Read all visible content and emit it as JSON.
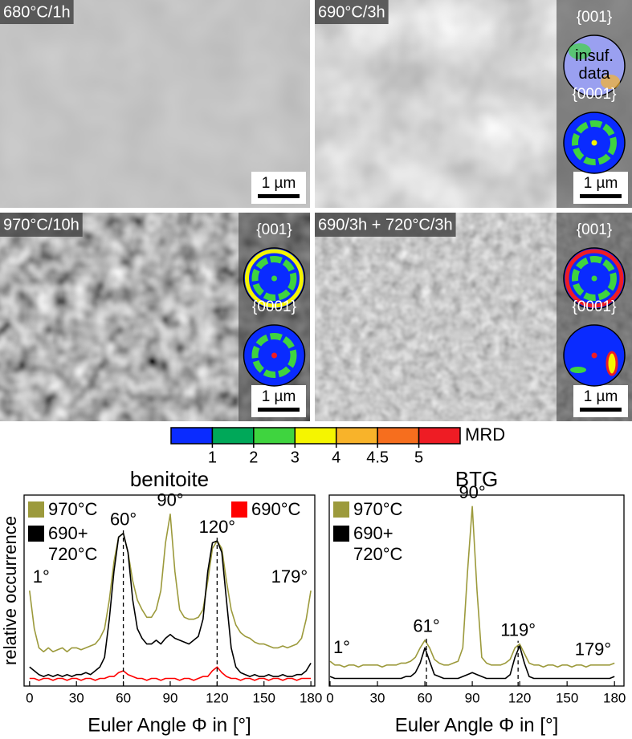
{
  "panels": [
    {
      "label": "680°C/1h",
      "scale_bar": "1 µm"
    },
    {
      "label": "690°C/3h",
      "scale_bar": "1 µm",
      "pole_figures": [
        {
          "label": "{001}",
          "note": "insuf. data"
        },
        {
          "label": "{0001}"
        }
      ]
    },
    {
      "label": "970°C/10h",
      "scale_bar": "1 µm",
      "pole_figures": [
        {
          "label": "{001}"
        },
        {
          "label": "{0001}"
        }
      ]
    },
    {
      "label": "690/3h + 720°C/3h",
      "scale_bar": "1 µm",
      "pole_figures": [
        {
          "label": "{001}"
        },
        {
          "label": "{0001}"
        }
      ]
    }
  ],
  "colorbar": {
    "label": "MRD",
    "ticks": [
      1,
      2,
      3,
      4,
      4.5,
      5
    ],
    "colors": [
      "#0a2bff",
      "#00a859",
      "#3fd43f",
      "#f5f500",
      "#f8b32a",
      "#f66e1e",
      "#ee1c24"
    ]
  },
  "chart_data": [
    {
      "type": "line",
      "title": "benitoite",
      "xlabel": "Euler Angle Φ in [°]",
      "ylabel": "relative occurrence",
      "xlim": [
        -3.5,
        182.5
      ],
      "xticks": [
        0,
        30,
        60,
        90,
        120,
        150,
        180
      ],
      "ylim": [
        0,
        1
      ],
      "legend": "upper left",
      "x": [
        0,
        3,
        6,
        9,
        12,
        15,
        18,
        21,
        24,
        27,
        30,
        33,
        36,
        39,
        42,
        45,
        48,
        51,
        54,
        57,
        60,
        63,
        66,
        69,
        72,
        75,
        78,
        81,
        84,
        87,
        90,
        93,
        96,
        99,
        102,
        105,
        108,
        111,
        114,
        117,
        120,
        123,
        126,
        129,
        132,
        135,
        138,
        141,
        144,
        147,
        150,
        153,
        156,
        159,
        162,
        165,
        168,
        171,
        174,
        177,
        180
      ],
      "series": [
        {
          "name": "970°C",
          "color": "#9c9a3c",
          "values": [
            0.5,
            0.3,
            0.2,
            0.18,
            0.2,
            0.18,
            0.19,
            0.2,
            0.18,
            0.2,
            0.2,
            0.19,
            0.2,
            0.21,
            0.22,
            0.25,
            0.3,
            0.45,
            0.65,
            0.78,
            0.8,
            0.7,
            0.55,
            0.45,
            0.4,
            0.36,
            0.36,
            0.4,
            0.5,
            0.75,
            0.9,
            0.6,
            0.4,
            0.36,
            0.35,
            0.35,
            0.36,
            0.4,
            0.55,
            0.72,
            0.76,
            0.72,
            0.55,
            0.4,
            0.32,
            0.28,
            0.26,
            0.25,
            0.23,
            0.22,
            0.22,
            0.21,
            0.2,
            0.2,
            0.21,
            0.2,
            0.21,
            0.22,
            0.25,
            0.35,
            0.5
          ]
        },
        {
          "name": "690+ 720°C",
          "color": "#000000",
          "values": [
            0.1,
            0.08,
            0.06,
            0.05,
            0.06,
            0.05,
            0.06,
            0.05,
            0.06,
            0.05,
            0.06,
            0.06,
            0.07,
            0.06,
            0.08,
            0.1,
            0.15,
            0.35,
            0.6,
            0.78,
            0.8,
            0.7,
            0.45,
            0.3,
            0.25,
            0.22,
            0.22,
            0.24,
            0.22,
            0.25,
            0.27,
            0.25,
            0.24,
            0.23,
            0.22,
            0.24,
            0.26,
            0.35,
            0.6,
            0.75,
            0.76,
            0.7,
            0.45,
            0.2,
            0.1,
            0.07,
            0.06,
            0.05,
            0.06,
            0.05,
            0.05,
            0.06,
            0.05,
            0.05,
            0.06,
            0.05,
            0.05,
            0.06,
            0.06,
            0.08,
            0.12
          ]
        },
        {
          "name": "690°C",
          "color": "#ff0000",
          "values": [
            0.04,
            0.04,
            0.03,
            0.04,
            0.04,
            0.03,
            0.04,
            0.04,
            0.03,
            0.04,
            0.04,
            0.03,
            0.04,
            0.04,
            0.03,
            0.04,
            0.04,
            0.05,
            0.05,
            0.07,
            0.08,
            0.06,
            0.05,
            0.04,
            0.04,
            0.03,
            0.04,
            0.04,
            0.03,
            0.04,
            0.04,
            0.04,
            0.03,
            0.04,
            0.04,
            0.03,
            0.04,
            0.05,
            0.05,
            0.08,
            0.1,
            0.07,
            0.05,
            0.04,
            0.04,
            0.03,
            0.04,
            0.04,
            0.03,
            0.04,
            0.04,
            0.03,
            0.04,
            0.04,
            0.03,
            0.04,
            0.04,
            0.03,
            0.04,
            0.04,
            0.04
          ]
        }
      ],
      "annotations": [
        {
          "text": "1°",
          "x": 1
        },
        {
          "text": "60°",
          "x": 60,
          "dashed": true
        },
        {
          "text": "90°",
          "x": 90
        },
        {
          "text": "120°",
          "x": 120,
          "dashed": true
        },
        {
          "text": "179°",
          "x": 179
        }
      ]
    },
    {
      "type": "line",
      "title": "BTG",
      "xlabel": "Euler Angle Φ in [°]",
      "xlim": [
        -0.5,
        186
      ],
      "xticks": [
        0,
        30,
        60,
        90,
        120,
        150,
        180
      ],
      "ylim": [
        0,
        1
      ],
      "legend": "upper left",
      "x": [
        0,
        3,
        6,
        9,
        12,
        15,
        18,
        21,
        24,
        27,
        30,
        33,
        36,
        39,
        42,
        45,
        48,
        51,
        54,
        57,
        60,
        63,
        66,
        69,
        72,
        75,
        78,
        81,
        84,
        87,
        90,
        93,
        96,
        99,
        102,
        105,
        108,
        111,
        114,
        117,
        120,
        123,
        126,
        129,
        132,
        135,
        138,
        141,
        144,
        147,
        150,
        153,
        156,
        159,
        162,
        165,
        168,
        171,
        174,
        177,
        180
      ],
      "series": [
        {
          "name": "970°C",
          "color": "#9c9a3c",
          "values": [
            0.13,
            0.11,
            0.11,
            0.1,
            0.11,
            0.11,
            0.1,
            0.11,
            0.11,
            0.11,
            0.11,
            0.1,
            0.11,
            0.11,
            0.11,
            0.12,
            0.12,
            0.13,
            0.15,
            0.2,
            0.24,
            0.2,
            0.14,
            0.12,
            0.11,
            0.11,
            0.12,
            0.13,
            0.2,
            0.6,
            0.94,
            0.5,
            0.15,
            0.12,
            0.11,
            0.11,
            0.11,
            0.12,
            0.14,
            0.2,
            0.22,
            0.17,
            0.12,
            0.11,
            0.11,
            0.1,
            0.11,
            0.11,
            0.1,
            0.11,
            0.11,
            0.1,
            0.11,
            0.11,
            0.1,
            0.11,
            0.11,
            0.11,
            0.11,
            0.11,
            0.12
          ]
        },
        {
          "name": "690+ 720°C",
          "color": "#000000",
          "values": [
            0.05,
            0.04,
            0.04,
            0.04,
            0.04,
            0.04,
            0.04,
            0.04,
            0.04,
            0.04,
            0.04,
            0.04,
            0.04,
            0.04,
            0.04,
            0.04,
            0.05,
            0.05,
            0.07,
            0.12,
            0.2,
            0.13,
            0.06,
            0.05,
            0.04,
            0.04,
            0.04,
            0.04,
            0.05,
            0.06,
            0.07,
            0.06,
            0.05,
            0.04,
            0.04,
            0.04,
            0.04,
            0.04,
            0.06,
            0.15,
            0.21,
            0.12,
            0.05,
            0.04,
            0.04,
            0.04,
            0.04,
            0.04,
            0.04,
            0.04,
            0.04,
            0.04,
            0.04,
            0.04,
            0.04,
            0.04,
            0.04,
            0.04,
            0.04,
            0.04,
            0.05
          ]
        }
      ],
      "annotations": [
        {
          "text": "1°",
          "x": 1
        },
        {
          "text": "61°",
          "x": 61,
          "dashed": true
        },
        {
          "text": "90°",
          "x": 90
        },
        {
          "text": "119°",
          "x": 119,
          "dashed": true
        },
        {
          "text": "179°",
          "x": 179
        }
      ]
    }
  ]
}
